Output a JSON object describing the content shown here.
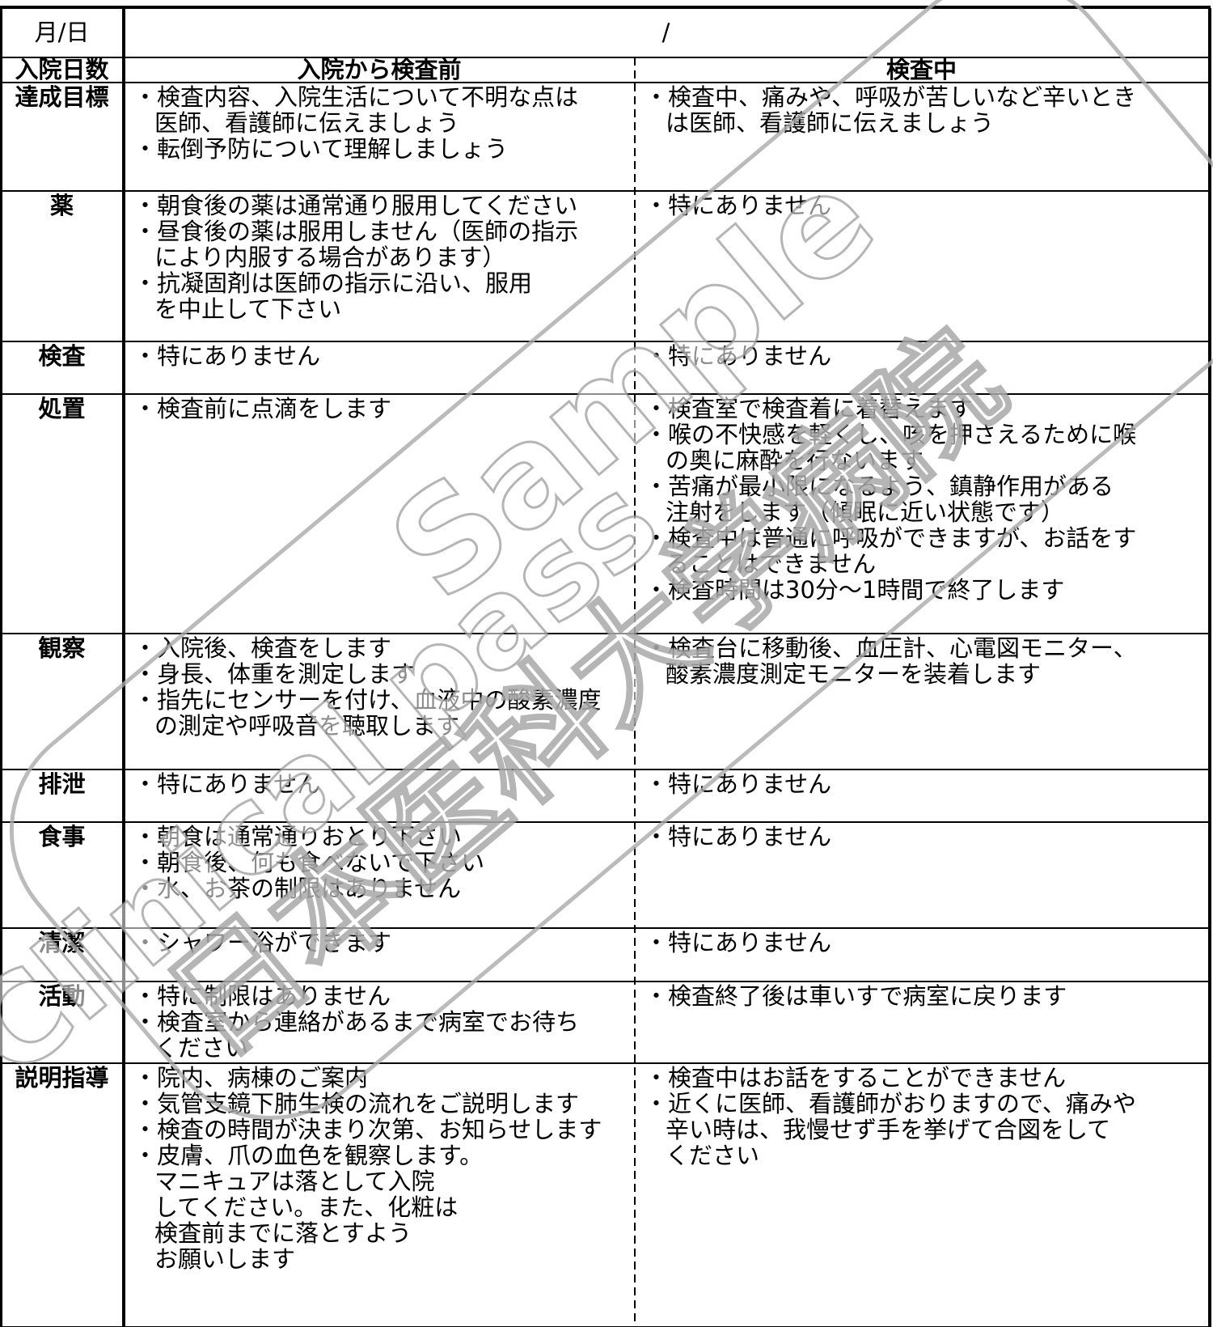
{
  "header": {
    "date_label": "月/日",
    "date_value": "/"
  },
  "columns": {
    "label": "入院日数",
    "col1": "入院から検査前",
    "col2": "検査中"
  },
  "rows": [
    {
      "label": "達成目標",
      "col1": [
        "・検査内容、入院生活について不明な点は",
        "医師、看護師に伝えましょう",
        "・転倒予防について理解しましょう"
      ],
      "col2": [
        "・検査中、痛みや、呼吸が苦しいなど辛いとき",
        "は医師、看護師に伝えましょう"
      ]
    },
    {
      "label": "薬",
      "col1": [
        "・朝食後の薬は通常通り服用してください",
        "・昼食後の薬は服用しません（医師の指示",
        "により内服する場合があります）",
        "・抗凝固剤は医師の指示に沿い、服用",
        "を中止して下さい"
      ],
      "col2": [
        "・特にありません"
      ]
    },
    {
      "label": "検査",
      "col1": [
        "・特にありません"
      ],
      "col2": [
        "・特にありません"
      ]
    },
    {
      "label": "処置",
      "col1": [
        "・検査前に点滴をします"
      ],
      "col2": [
        "・検査室で検査着に着替えます",
        "・喉の不快感を軽くし、咳を押さえるために喉",
        "の奥に麻酔を行ないます",
        "・苦痛が最小限になるよう、鎮静作用がある",
        "注射をします（傾眠に近い状態です）",
        "・検査中は普通に呼吸ができますが、お話をす",
        "ることはできません",
        "・検査時間は30分～1時間で終了します"
      ]
    },
    {
      "label": "観察",
      "col1": [
        "・入院後、検査をします",
        "・身長、体重を測定します",
        "・指先にセンサーを付け、血液中の酸素濃度",
        "の測定や呼吸音を聴取します"
      ],
      "col2": [
        "・検査台に移動後、血圧計、心電図モニター、",
        "酸素濃度測定モニターを装着します"
      ]
    },
    {
      "label": "排泄",
      "col1": [
        "・特にありません"
      ],
      "col2": [
        "・特にありません"
      ]
    },
    {
      "label": "食事",
      "col1": [
        "・朝食は通常通りおとり下さい",
        "・朝食後、何も食べないで下さい",
        "・水、お茶の制限はありません"
      ],
      "col2": [
        "・特にありません"
      ]
    },
    {
      "label": "清潔",
      "col1": [
        "・シャワー浴ができます"
      ],
      "col2": [
        "・特にありません"
      ]
    },
    {
      "label": "活動",
      "col1": [
        "・特に制限はありません",
        "・検査室から連絡があるまで病室でお待ち",
        "ください"
      ],
      "col2": [
        "・検査終了後は車いすで病室に戻ります"
      ]
    },
    {
      "label": "説明指導",
      "col1": [
        "・院内、病棟のご案内",
        "・気管支鏡下肺生検の流れをご説明します",
        "・検査の時間が決まり次第、お知らせします",
        "・皮膚、爪の血色を観察します。",
        "マニキュアは落として入院",
        "してください。また、化粧は",
        "検査前までに落とすよう",
        "お願いします"
      ],
      "col2": [
        "・検査中はお話をすることができません",
        "・近くに医師、看護師がおりますので、痛みや",
        "辛い時は、我慢せず手を挙げて合図をして",
        "ください"
      ]
    }
  ],
  "watermark": {
    "line1": "Clinical pass",
    "line2": "Sample",
    "line3": "日本医科大学病院"
  }
}
